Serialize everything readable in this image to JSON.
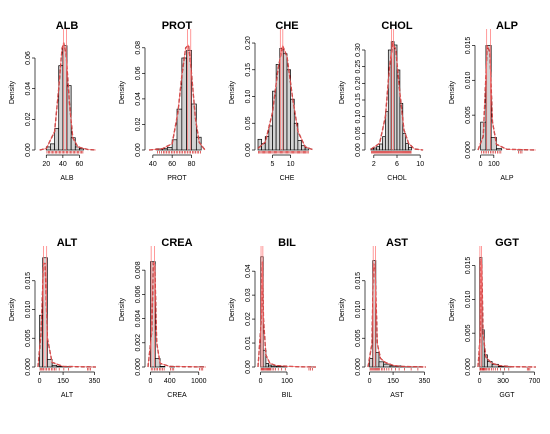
{
  "chart_data": [
    {
      "type": "histogram",
      "title": "ALB",
      "xlabel": "ALB",
      "ylabel": "Density",
      "xlim": [
        10,
        80
      ],
      "ylim": [
        0,
        0.075
      ],
      "xticks": [
        20,
        40,
        60
      ],
      "yticks": [
        0.0,
        0.02,
        0.04,
        0.06
      ],
      "bins": [
        [
          20,
          25,
          0.002
        ],
        [
          25,
          30,
          0.004
        ],
        [
          30,
          35,
          0.014
        ],
        [
          35,
          40,
          0.055
        ],
        [
          40,
          45,
          0.068
        ],
        [
          45,
          50,
          0.042
        ],
        [
          50,
          55,
          0.008
        ],
        [
          55,
          60,
          0.002
        ],
        [
          60,
          65,
          0.001
        ]
      ],
      "curve": [
        [
          12,
          0
        ],
        [
          20,
          0.001
        ],
        [
          30,
          0.012
        ],
        [
          35,
          0.04
        ],
        [
          39,
          0.066
        ],
        [
          41,
          0.07
        ],
        [
          44,
          0.062
        ],
        [
          48,
          0.03
        ],
        [
          52,
          0.008
        ],
        [
          58,
          0.002
        ],
        [
          70,
          0.0003
        ],
        [
          80,
          0
        ]
      ]
    },
    {
      "type": "histogram",
      "title": "PROT",
      "xlabel": "PROT",
      "ylabel": "Density",
      "xlim": [
        35,
        95
      ],
      "ylim": [
        0,
        0.09
      ],
      "xticks": [
        40,
        60,
        80
      ],
      "yticks": [
        0.0,
        0.02,
        0.04,
        0.06,
        0.08
      ],
      "bins": [
        [
          44,
          50,
          0.001
        ],
        [
          50,
          55,
          0.001
        ],
        [
          55,
          60,
          0.002
        ],
        [
          60,
          65,
          0.008
        ],
        [
          65,
          70,
          0.032
        ],
        [
          70,
          75,
          0.072
        ],
        [
          75,
          80,
          0.078
        ],
        [
          80,
          85,
          0.036
        ],
        [
          85,
          90,
          0.01
        ]
      ],
      "curve": [
        [
          36,
          0
        ],
        [
          50,
          0.001
        ],
        [
          60,
          0.005
        ],
        [
          66,
          0.03
        ],
        [
          70,
          0.058
        ],
        [
          74,
          0.08
        ],
        [
          77,
          0.082
        ],
        [
          80,
          0.06
        ],
        [
          84,
          0.025
        ],
        [
          88,
          0.006
        ],
        [
          94,
          0
        ]
      ]
    },
    {
      "type": "histogram",
      "title": "CHE",
      "xlabel": "CHE",
      "ylabel": "Density",
      "xlim": [
        1,
        17
      ],
      "ylim": [
        0,
        0.215
      ],
      "xticks": [
        5,
        10
      ],
      "yticks": [
        0.0,
        0.05,
        0.1,
        0.15,
        0.2
      ],
      "bins": [
        [
          1,
          2,
          0.02
        ],
        [
          2,
          3,
          0.012
        ],
        [
          3,
          4,
          0.025
        ],
        [
          4,
          5,
          0.045
        ],
        [
          5,
          6,
          0.11
        ],
        [
          6,
          7,
          0.16
        ],
        [
          7,
          8,
          0.19
        ],
        [
          8,
          9,
          0.18
        ],
        [
          9,
          10,
          0.15
        ],
        [
          10,
          11,
          0.095
        ],
        [
          11,
          12,
          0.05
        ],
        [
          12,
          13,
          0.018
        ],
        [
          13,
          14,
          0.008
        ],
        [
          14,
          15,
          0.004
        ]
      ],
      "curve": [
        [
          1,
          0.003
        ],
        [
          3,
          0.015
        ],
        [
          5,
          0.07
        ],
        [
          6.5,
          0.15
        ],
        [
          7.8,
          0.195
        ],
        [
          9,
          0.175
        ],
        [
          10.5,
          0.1
        ],
        [
          12,
          0.035
        ],
        [
          14,
          0.006
        ],
        [
          16,
          0.001
        ]
      ]
    },
    {
      "type": "histogram",
      "title": "CHOL",
      "xlabel": "CHOL",
      "ylabel": "Density",
      "xlim": [
        1,
        11
      ],
      "ylim": [
        0,
        0.345
      ],
      "xticks": [
        2,
        6,
        10
      ],
      "yticks": [
        0.0,
        0.05,
        0.1,
        0.15,
        0.2,
        0.25,
        0.3
      ],
      "bins": [
        [
          1.5,
          2,
          0.004
        ],
        [
          2,
          2.5,
          0.006
        ],
        [
          2.5,
          3,
          0.01
        ],
        [
          3,
          3.5,
          0.018
        ],
        [
          3.5,
          4,
          0.04
        ],
        [
          4,
          4.5,
          0.115
        ],
        [
          4.5,
          5,
          0.3
        ],
        [
          5,
          5.5,
          0.325
        ],
        [
          5.5,
          6,
          0.315
        ],
        [
          6,
          6.5,
          0.24
        ],
        [
          6.5,
          7,
          0.14
        ],
        [
          7,
          7.5,
          0.05
        ],
        [
          7.5,
          8,
          0.02
        ],
        [
          8,
          8.5,
          0.008
        ]
      ],
      "curve": [
        [
          1.5,
          0.002
        ],
        [
          3,
          0.02
        ],
        [
          4,
          0.1
        ],
        [
          4.7,
          0.25
        ],
        [
          5.3,
          0.32
        ],
        [
          5.8,
          0.3
        ],
        [
          6.5,
          0.17
        ],
        [
          7.2,
          0.06
        ],
        [
          8,
          0.02
        ],
        [
          9,
          0.003
        ],
        [
          10.5,
          0
        ]
      ]
    },
    {
      "type": "histogram",
      "title": "ALP",
      "xlabel": "ALP",
      "ylabel": "Density",
      "xlim": [
        -20,
        420
      ],
      "ylim": [
        0,
        0.0165
      ],
      "xticks": [
        0,
        100
      ],
      "yticks": [
        0.0,
        0.005,
        0.01,
        0.015
      ],
      "bins": [
        [
          0,
          40,
          0.004
        ],
        [
          40,
          80,
          0.015
        ],
        [
          80,
          120,
          0.0018
        ],
        [
          120,
          160,
          0.0002
        ],
        [
          280,
          320,
          5e-05
        ]
      ],
      "curve": [
        [
          -20,
          0
        ],
        [
          20,
          0.002
        ],
        [
          50,
          0.015
        ],
        [
          70,
          0.014
        ],
        [
          90,
          0.004
        ],
        [
          120,
          0.0008
        ],
        [
          200,
          0.0001
        ],
        [
          420,
          0
        ]
      ]
    },
    {
      "type": "histogram",
      "title": "ALT",
      "xlabel": "ALT",
      "ylabel": "Density",
      "xlim": [
        -10,
        360
      ],
      "ylim": [
        0,
        0.02
      ],
      "xticks": [
        0,
        150,
        350
      ],
      "yticks": [
        0.0,
        0.005,
        0.01,
        0.015
      ],
      "bins": [
        [
          0,
          20,
          0.009
        ],
        [
          20,
          50,
          0.019
        ],
        [
          50,
          80,
          0.0013
        ],
        [
          80,
          110,
          0.0003
        ],
        [
          110,
          200,
          0.0001
        ],
        [
          300,
          330,
          4e-05
        ]
      ],
      "curve": [
        [
          -10,
          0
        ],
        [
          10,
          0.006
        ],
        [
          25,
          0.018
        ],
        [
          35,
          0.018
        ],
        [
          50,
          0.005
        ],
        [
          80,
          0.0008
        ],
        [
          150,
          0.0001
        ],
        [
          360,
          0
        ]
      ]
    },
    {
      "type": "histogram",
      "title": "CREA",
      "xlabel": "CREA",
      "ylabel": "Density",
      "xlim": [
        -50,
        1150
      ],
      "ylim": [
        0,
        0.0095
      ],
      "xticks": [
        0,
        400,
        1000
      ],
      "yticks": [
        0.0,
        0.002,
        0.004,
        0.006,
        0.008
      ],
      "bins": [
        [
          0,
          100,
          0.0087
        ],
        [
          100,
          200,
          0.0007
        ],
        [
          200,
          300,
          5e-05
        ],
        [
          400,
          500,
          3e-05
        ],
        [
          1000,
          1100,
          3e-05
        ]
      ],
      "curve": [
        [
          -50,
          0
        ],
        [
          30,
          0.003
        ],
        [
          60,
          0.0086
        ],
        [
          90,
          0.0085
        ],
        [
          130,
          0.002
        ],
        [
          200,
          0.0003
        ],
        [
          400,
          5e-05
        ],
        [
          1150,
          0
        ]
      ]
    },
    {
      "type": "histogram",
      "title": "BIL",
      "xlabel": "BIL",
      "ylabel": "Density",
      "xlim": [
        -10,
        210
      ],
      "ylim": [
        0,
        0.048
      ],
      "xticks": [
        0,
        100
      ],
      "yticks": [
        0.0,
        0.01,
        0.02,
        0.03,
        0.04
      ],
      "bins": [
        [
          0,
          10,
          0.046
        ],
        [
          10,
          20,
          0.007
        ],
        [
          20,
          30,
          0.0015
        ],
        [
          30,
          40,
          0.0008
        ],
        [
          40,
          60,
          0.0004
        ],
        [
          60,
          100,
          0.0002
        ],
        [
          180,
          200,
          0.0001
        ]
      ],
      "curve": [
        [
          -10,
          0
        ],
        [
          3,
          0.02
        ],
        [
          7,
          0.044
        ],
        [
          11,
          0.02
        ],
        [
          20,
          0.005
        ],
        [
          35,
          0.0015
        ],
        [
          60,
          0.0006
        ],
        [
          100,
          0.0003
        ],
        [
          150,
          0.0001
        ],
        [
          210,
          0
        ]
      ]
    },
    {
      "type": "histogram",
      "title": "AST",
      "xlabel": "AST",
      "ylabel": "Density",
      "xlim": [
        -10,
        360
      ],
      "ylim": [
        0,
        0.02
      ],
      "xticks": [
        0,
        150,
        350
      ],
      "yticks": [
        0.0,
        0.005,
        0.01,
        0.015
      ],
      "bins": [
        [
          0,
          20,
          0.0015
        ],
        [
          20,
          40,
          0.0185
        ],
        [
          40,
          60,
          0.0025
        ],
        [
          60,
          90,
          0.0009
        ],
        [
          90,
          130,
          0.0005
        ],
        [
          130,
          200,
          0.0002
        ],
        [
          200,
          330,
          5e-05
        ]
      ],
      "curve": [
        [
          -10,
          0
        ],
        [
          15,
          0.004
        ],
        [
          25,
          0.018
        ],
        [
          35,
          0.017
        ],
        [
          50,
          0.004
        ],
        [
          70,
          0.0015
        ],
        [
          100,
          0.0008
        ],
        [
          150,
          0.0003
        ],
        [
          200,
          0.0001
        ],
        [
          360,
          0
        ]
      ]
    },
    {
      "type": "histogram",
      "title": "GGT",
      "xlabel": "GGT",
      "ylabel": "Density",
      "xlim": [
        -20,
        720
      ],
      "ylim": [
        0,
        0.017
      ],
      "xticks": [
        0,
        300,
        700
      ],
      "yticks": [
        0.0,
        0.005,
        0.01,
        0.015
      ],
      "bins": [
        [
          0,
          30,
          0.0162
        ],
        [
          30,
          60,
          0.0055
        ],
        [
          60,
          100,
          0.0018
        ],
        [
          100,
          160,
          0.0008
        ],
        [
          160,
          240,
          0.0004
        ],
        [
          240,
          400,
          0.0001
        ],
        [
          600,
          650,
          2e-05
        ]
      ],
      "curve": [
        [
          -20,
          0
        ],
        [
          10,
          0.005
        ],
        [
          20,
          0.016
        ],
        [
          28,
          0.015
        ],
        [
          45,
          0.005
        ],
        [
          80,
          0.0015
        ],
        [
          150,
          0.0006
        ],
        [
          250,
          0.0002
        ],
        [
          400,
          5e-05
        ],
        [
          720,
          0
        ]
      ]
    }
  ]
}
